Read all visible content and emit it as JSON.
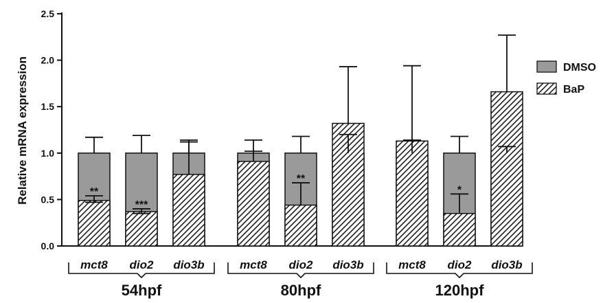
{
  "chart_data": {
    "type": "bar",
    "ylabel": "Relative mRNA expression",
    "ylim": [
      0,
      2.5
    ],
    "yticks": [
      "0.0",
      "0.5",
      "1.0",
      "1.5",
      "2.0",
      "2.5"
    ],
    "legend_position": "right",
    "groups": [
      {
        "label": "54hpf",
        "bars": [
          {
            "gene": "mct8",
            "dmso": 1.0,
            "dmso_err": 0.17,
            "bap": 0.49,
            "bap_err": 0.05,
            "bap_err_low": 0.02,
            "sig": "**"
          },
          {
            "gene": "dio2",
            "dmso": 1.0,
            "dmso_err": 0.19,
            "bap": 0.37,
            "bap_err": 0.03,
            "bap_err_low": 0.02,
            "sig": "***"
          },
          {
            "gene": "dio3b",
            "dmso": 1.0,
            "dmso_err": 0.12,
            "bap": 0.77,
            "bap_err": 0.37,
            "bap_err_low": null,
            "sig": ""
          }
        ]
      },
      {
        "label": "80hpf",
        "bars": [
          {
            "gene": "mct8",
            "dmso": 1.0,
            "dmso_err": 0.14,
            "bap": 0.91,
            "bap_err": 0.11,
            "bap_err_low": null,
            "sig": ""
          },
          {
            "gene": "dio2",
            "dmso": 1.0,
            "dmso_err": 0.18,
            "bap": 0.44,
            "bap_err": 0.24,
            "bap_err_low": null,
            "sig": "**"
          },
          {
            "gene": "dio3b",
            "dmso": 1.0,
            "dmso_err": 0.2,
            "bap": 1.32,
            "bap_err": 0.61,
            "bap_err_low": null,
            "sig": ""
          }
        ]
      },
      {
        "label": "120hpf",
        "bars": [
          {
            "gene": "mct8",
            "dmso": 1.0,
            "dmso_err": 0.94,
            "bap": 1.13,
            "bap_err": 0.01,
            "bap_err_low": null,
            "sig": ""
          },
          {
            "gene": "dio2",
            "dmso": 1.0,
            "dmso_err": 0.18,
            "bap": 0.35,
            "bap_err": 0.21,
            "bap_err_low": null,
            "sig": "*"
          },
          {
            "gene": "dio3b",
            "dmso": 1.0,
            "dmso_err": 0.07,
            "bap": 1.66,
            "bap_err": 0.61,
            "bap_err_low": null,
            "sig": ""
          }
        ]
      }
    ],
    "series": [
      {
        "name": "DMSO",
        "color": "#9a9a9a",
        "pattern": "solid"
      },
      {
        "name": "BaP",
        "color": "#ffffff",
        "pattern": "diagonal-hatch"
      }
    ]
  }
}
